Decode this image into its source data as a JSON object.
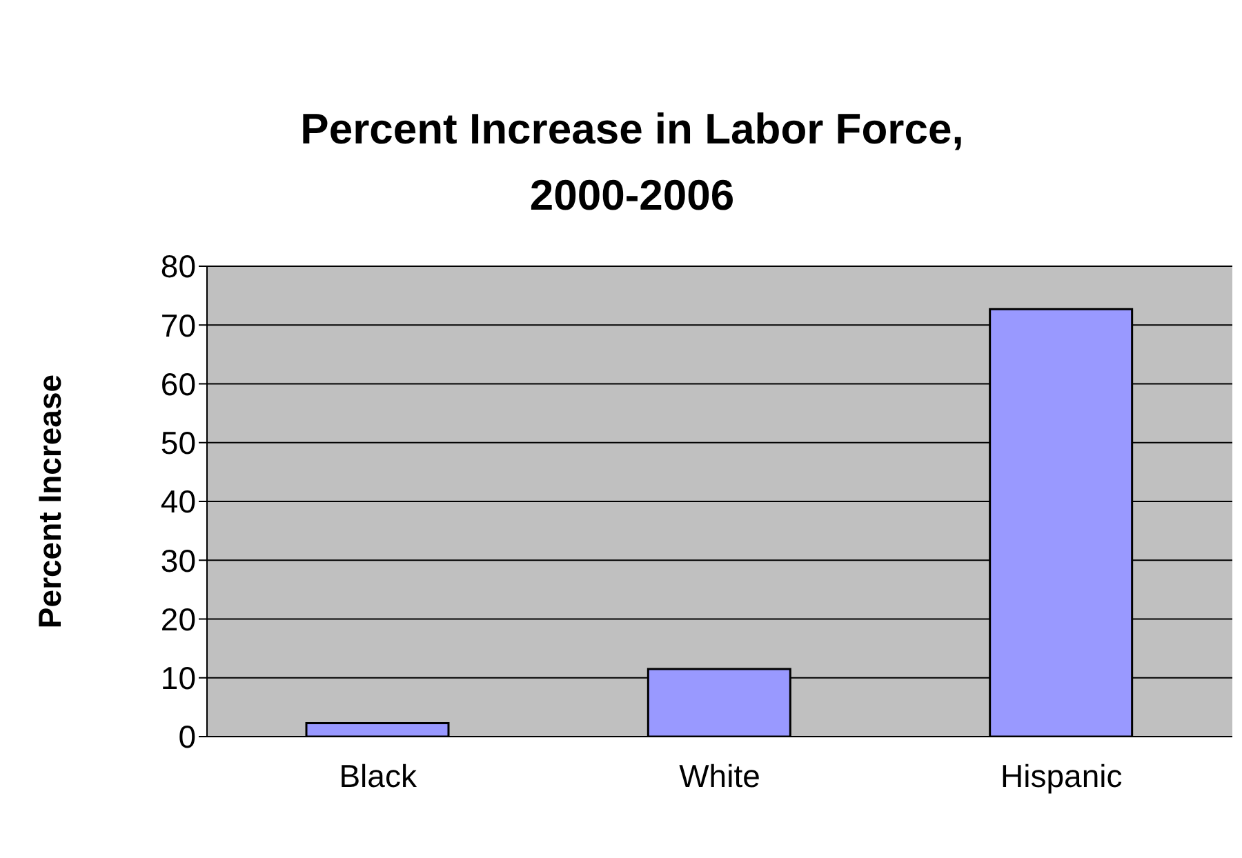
{
  "chart_data": {
    "type": "bar",
    "title": "Percent Increase in Labor Force,\n2000-2006",
    "ylabel": "Percent Increase",
    "categories": [
      "Black",
      "White",
      "Hispanic"
    ],
    "values": [
      2.3,
      11.5,
      72.7
    ],
    "color": "#9999ff",
    "ylim": [
      0,
      80
    ],
    "yticks": [
      0,
      10,
      20,
      30,
      40,
      50,
      60,
      70,
      80
    ],
    "grid": "y",
    "legend": false
  }
}
